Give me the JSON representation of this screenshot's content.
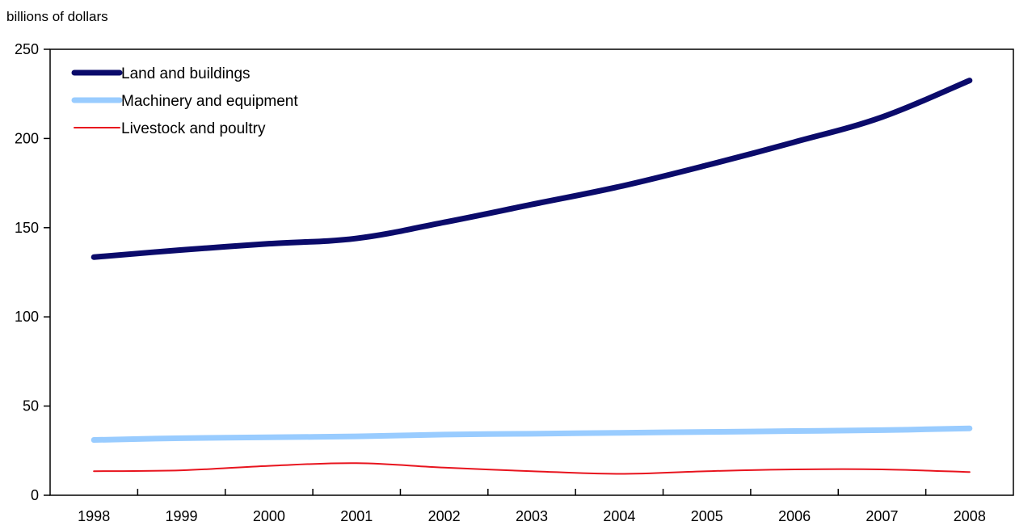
{
  "chart_data": {
    "type": "line",
    "ylabel": "billions of dollars",
    "xlabel": "",
    "categories": [
      "1998",
      "1999",
      "2000",
      "2001",
      "2002",
      "2003",
      "2004",
      "2005",
      "2006",
      "2007",
      "2008"
    ],
    "ylim": [
      0,
      250
    ],
    "yticks": [
      0,
      50,
      100,
      150,
      200,
      250
    ],
    "grid": false,
    "legend_position": "top-left",
    "series": [
      {
        "name": "Land and buildings",
        "color": "#0b0b6b",
        "width": "thick",
        "values": [
          133.5,
          137.5,
          141,
          144,
          153,
          163,
          173,
          185,
          198,
          212,
          232.5
        ]
      },
      {
        "name": "Machinery and equipment",
        "color": "#99ccff",
        "width": "thick",
        "values": [
          31,
          32,
          32.5,
          33,
          34,
          34.5,
          35,
          35.5,
          36,
          36.5,
          37.5
        ]
      },
      {
        "name": "Livestock and poultry",
        "color": "#e8141e",
        "width": "thin",
        "values": [
          13.5,
          14,
          16.5,
          18,
          15.5,
          13.5,
          12,
          13.5,
          14.5,
          14.5,
          13
        ]
      }
    ]
  }
}
